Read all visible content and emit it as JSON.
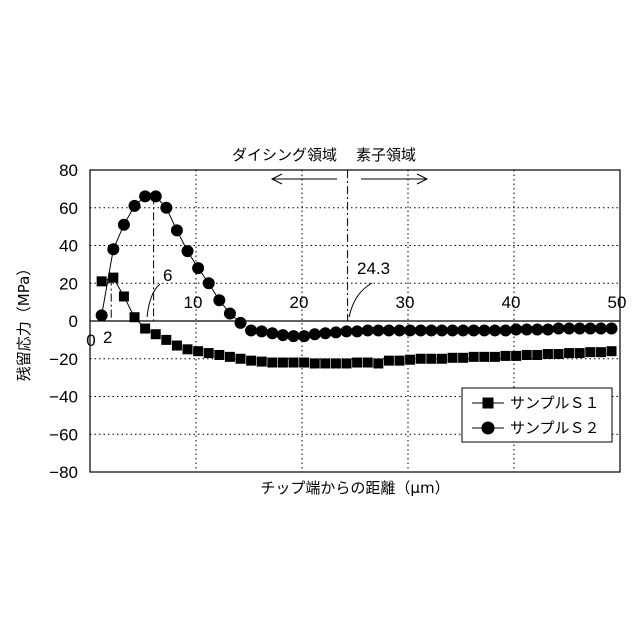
{
  "chart_data": {
    "type": "scatter",
    "title": "",
    "xlabel": "チップ端からの距離（μm）",
    "ylabel": "残留応力（MPa）",
    "xlim": [
      0,
      50
    ],
    "ylim": [
      -80,
      80
    ],
    "x_ticks": [
      "0",
      "10",
      "20",
      "30",
      "40",
      "50"
    ],
    "y_ticks": [
      "80",
      "60",
      "40",
      "20",
      "0",
      "−20",
      "−40",
      "−60",
      "−80"
    ],
    "grid": true,
    "legend_position": "bottom-right",
    "region_labels": {
      "dicing": "ダイシング領域",
      "element": "素子領域"
    },
    "boundary_x": 24.3,
    "boundary_label": "24.3",
    "peak_x": 6,
    "peak_label": "6",
    "marker_x": 2,
    "marker_label": "2",
    "series": [
      {
        "name": "サンプルＳ１",
        "marker": "square",
        "line_segment_x": [
          1,
          6
        ],
        "points": [
          [
            1.1,
            21
          ],
          [
            2.2,
            23
          ],
          [
            3.2,
            13
          ],
          [
            4.2,
            2
          ],
          [
            5.2,
            -4
          ],
          [
            6.2,
            -7
          ],
          [
            7.2,
            -10
          ],
          [
            8.2,
            -13
          ],
          [
            9.2,
            -15
          ],
          [
            10.2,
            -16
          ],
          [
            11.2,
            -17
          ],
          [
            12.2,
            -18
          ],
          [
            13.2,
            -19
          ],
          [
            14.2,
            -20
          ],
          [
            15.2,
            -21
          ],
          [
            16.2,
            -21.5
          ],
          [
            17.2,
            -22
          ],
          [
            18.2,
            -22
          ],
          [
            19.2,
            -22
          ],
          [
            20.2,
            -22
          ],
          [
            21.2,
            -22.5
          ],
          [
            22.2,
            -22.5
          ],
          [
            23.2,
            -22.5
          ],
          [
            24.2,
            -22.5
          ],
          [
            25.2,
            -22
          ],
          [
            26.2,
            -22
          ],
          [
            27.2,
            -22.5
          ],
          [
            28.2,
            -21
          ],
          [
            29.2,
            -21
          ],
          [
            30.2,
            -20.5
          ],
          [
            31.2,
            -20
          ],
          [
            32.2,
            -20
          ],
          [
            33.2,
            -20
          ],
          [
            34.2,
            -19.5
          ],
          [
            35.2,
            -19.5
          ],
          [
            36.2,
            -19
          ],
          [
            37.2,
            -19
          ],
          [
            38.2,
            -19
          ],
          [
            39.2,
            -18.5
          ],
          [
            40.2,
            -18.5
          ],
          [
            41.2,
            -18
          ],
          [
            42.2,
            -18
          ],
          [
            43.2,
            -17.5
          ],
          [
            44.2,
            -17.5
          ],
          [
            45.2,
            -17
          ],
          [
            46.2,
            -17
          ],
          [
            47.2,
            -16.5
          ],
          [
            48.2,
            -16.5
          ],
          [
            49.2,
            -16
          ],
          [
            50.2,
            -16
          ]
        ]
      },
      {
        "name": "サンプルＳ２",
        "marker": "circle",
        "line_segment_x": [
          1,
          14
        ],
        "points": [
          [
            1.1,
            3
          ],
          [
            2.2,
            38
          ],
          [
            3.2,
            51
          ],
          [
            4.2,
            61
          ],
          [
            5.2,
            66
          ],
          [
            6.2,
            66
          ],
          [
            7.2,
            60
          ],
          [
            8.2,
            48
          ],
          [
            9.2,
            37
          ],
          [
            10.2,
            28
          ],
          [
            11.2,
            20
          ],
          [
            12.2,
            11
          ],
          [
            13.2,
            4
          ],
          [
            14.2,
            -1
          ],
          [
            15.2,
            -5
          ],
          [
            16.2,
            -5.5
          ],
          [
            17.2,
            -6.5
          ],
          [
            18.2,
            -7.5
          ],
          [
            19.2,
            -8
          ],
          [
            20.2,
            -8
          ],
          [
            21.2,
            -7
          ],
          [
            22.2,
            -6.5
          ],
          [
            23.2,
            -6
          ],
          [
            24.2,
            -5.5
          ],
          [
            25.2,
            -5.5
          ],
          [
            26.2,
            -5
          ],
          [
            27.2,
            -5
          ],
          [
            28.2,
            -5
          ],
          [
            29.2,
            -5
          ],
          [
            30.2,
            -5
          ],
          [
            31.2,
            -5
          ],
          [
            32.2,
            -5
          ],
          [
            33.2,
            -5
          ],
          [
            34.2,
            -5
          ],
          [
            35.2,
            -5
          ],
          [
            36.2,
            -5
          ],
          [
            37.2,
            -5
          ],
          [
            38.2,
            -5
          ],
          [
            39.2,
            -5
          ],
          [
            40.2,
            -4.5
          ],
          [
            41.2,
            -4.5
          ],
          [
            42.2,
            -4.5
          ],
          [
            43.2,
            -4.5
          ],
          [
            44.2,
            -4
          ],
          [
            45.2,
            -4
          ],
          [
            46.2,
            -4
          ],
          [
            47.2,
            -4
          ],
          [
            48.2,
            -4
          ],
          [
            49.2,
            -4
          ],
          [
            50.2,
            -4
          ]
        ]
      }
    ]
  }
}
